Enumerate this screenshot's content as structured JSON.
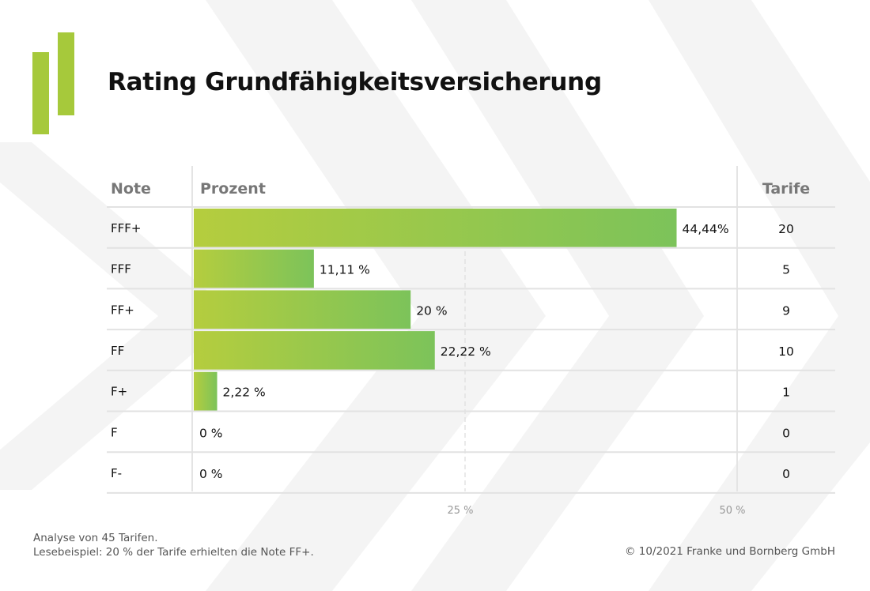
{
  "title": "Rating Grundfähigkeitsversicherung",
  "headers": {
    "note": "Note",
    "prozent": "Prozent",
    "tarife": "Tarife"
  },
  "footnote": {
    "line1": "Analyse von 45 Tarifen.",
    "line2": "Lesebeispiel: 20 % der Tarife erhielten die Note FF+."
  },
  "copyright": "© 10/2021 Franke und Bornberg GmbH",
  "colors": {
    "accent": "#a6c93b",
    "bar_start": "#b5cd3e",
    "bar_end": "#7cc35a"
  },
  "chart_data": {
    "type": "bar",
    "orientation": "horizontal",
    "title": "Rating Grundfähigkeitsversicherung",
    "categories": [
      "FFF+",
      "FFF",
      "FF+",
      "FF",
      "F+",
      "F",
      "F-"
    ],
    "values": [
      44.44,
      11.11,
      20,
      22.22,
      2.22,
      0,
      0
    ],
    "value_labels": [
      "44,44%",
      "11,11 %",
      "20 %",
      "22,22 %",
      "2,22 %",
      "0 %",
      "0 %"
    ],
    "tarife": [
      20,
      5,
      9,
      10,
      1,
      0,
      0
    ],
    "xticks": [
      25,
      50
    ],
    "xtick_labels": [
      "25 %",
      "50 %"
    ],
    "xlim": [
      0,
      50
    ],
    "grid": true
  }
}
